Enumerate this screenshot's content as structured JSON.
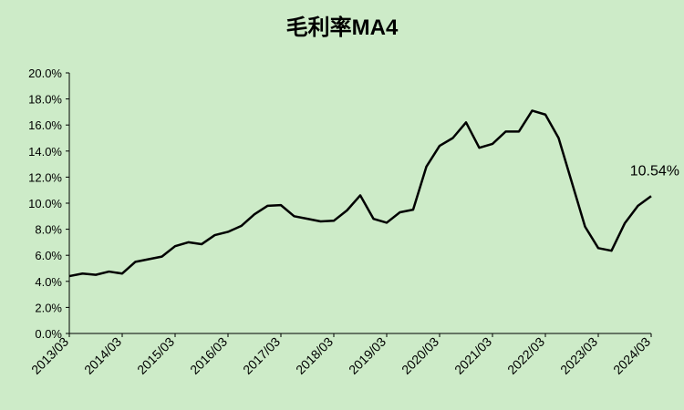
{
  "chart_data": {
    "type": "line",
    "title": "毛利率MA4",
    "categories": [
      "2013/03",
      null,
      null,
      null,
      "2014/03",
      null,
      null,
      null,
      "2015/03",
      null,
      null,
      null,
      "2016/03",
      null,
      null,
      null,
      "2017/03",
      null,
      null,
      null,
      "2018/03",
      null,
      null,
      null,
      "2019/03",
      null,
      null,
      null,
      "2020/03",
      null,
      null,
      null,
      "2021/03",
      null,
      null,
      null,
      "2022/03",
      null,
      null,
      null,
      "2023/03",
      null,
      null,
      null,
      "2024/03"
    ],
    "series": [
      {
        "color": "#000000",
        "values": [
          4.4,
          4.6,
          4.5,
          4.75,
          4.6,
          5.5,
          5.7,
          5.9,
          6.7,
          7.0,
          6.85,
          7.55,
          7.8,
          8.25,
          9.15,
          9.8,
          9.85,
          9.0,
          8.8,
          8.6,
          8.65,
          9.45,
          10.6,
          8.8,
          8.5,
          9.3,
          9.5,
          12.8,
          14.4,
          15.0,
          16.2,
          14.25,
          14.55,
          15.5,
          15.5,
          17.1,
          16.8,
          15.0,
          11.6,
          8.2,
          6.55,
          6.35,
          8.45,
          9.8,
          10.54
        ],
        "value_labels": [
          null,
          null,
          null,
          null,
          null,
          null,
          null,
          null,
          null,
          null,
          null,
          null,
          null,
          null,
          null,
          null,
          null,
          null,
          null,
          null,
          null,
          null,
          null,
          null,
          null,
          null,
          null,
          null,
          null,
          null,
          null,
          null,
          null,
          null,
          null,
          null,
          null,
          null,
          null,
          null,
          null,
          null,
          null,
          null,
          "10.54%"
        ]
      }
    ],
    "ylim": [
      0,
      20
    ],
    "yticks": [
      {
        "value": 0,
        "label": "0.0%"
      },
      {
        "value": 2,
        "label": "2.0%"
      },
      {
        "value": 4,
        "label": "4.0%"
      },
      {
        "value": 6,
        "label": "6.0%"
      },
      {
        "value": 8,
        "label": "8.0%"
      },
      {
        "value": 10,
        "label": "10.0%"
      },
      {
        "value": 12,
        "label": "12.0%"
      },
      {
        "value": 14,
        "label": "14.0%"
      },
      {
        "value": 16,
        "label": "16.0%"
      },
      {
        "value": 18,
        "label": "18.0%"
      },
      {
        "value": 20,
        "label": "20.0%"
      }
    ],
    "grid": false
  }
}
